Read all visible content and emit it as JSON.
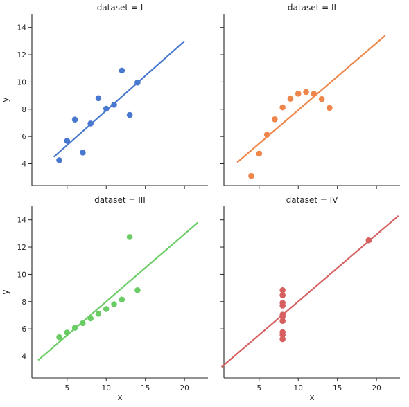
{
  "chart_data": [
    {
      "type": "scatter",
      "title": "dataset = I",
      "xlabel": "",
      "ylabel": "y",
      "color": "#4878d0",
      "x": [
        10,
        8,
        13,
        9,
        11,
        14,
        6,
        4,
        12,
        7,
        5
      ],
      "y": [
        8.04,
        6.95,
        7.58,
        8.81,
        8.33,
        9.96,
        7.24,
        4.26,
        10.84,
        4.82,
        5.68
      ],
      "regression": {
        "x": [
          3.3,
          20.0
        ],
        "y": [
          4.5,
          13.0
        ]
      }
    },
    {
      "type": "scatter",
      "title": "dataset = II",
      "xlabel": "",
      "ylabel": "",
      "color": "#ee854a",
      "x": [
        10,
        8,
        13,
        9,
        11,
        14,
        6,
        4,
        12,
        7,
        5
      ],
      "y": [
        9.14,
        8.14,
        8.74,
        8.77,
        9.26,
        8.1,
        6.13,
        3.1,
        9.13,
        7.26,
        4.74
      ],
      "regression": {
        "x": [
          2.2,
          21.1
        ],
        "y": [
          4.1,
          13.4
        ]
      }
    },
    {
      "type": "scatter",
      "title": "dataset = III",
      "xlabel": "x",
      "ylabel": "y",
      "color": "#6acc64",
      "x": [
        10,
        8,
        13,
        9,
        11,
        14,
        6,
        4,
        12,
        7,
        5
      ],
      "y": [
        7.46,
        6.77,
        12.74,
        7.11,
        7.81,
        8.84,
        6.08,
        5.39,
        8.15,
        6.42,
        5.73
      ],
      "regression": {
        "x": [
          1.3,
          21.7
        ],
        "y": [
          3.7,
          13.8
        ]
      }
    },
    {
      "type": "scatter",
      "title": "dataset = IV",
      "xlabel": "x",
      "ylabel": "",
      "color": "#d65f5f",
      "x": [
        8,
        8,
        8,
        8,
        8,
        8,
        8,
        19,
        8,
        8,
        8
      ],
      "y": [
        6.58,
        5.76,
        7.71,
        8.84,
        8.47,
        7.04,
        5.25,
        12.5,
        5.56,
        7.91,
        6.89
      ],
      "regression": {
        "x": [
          0.2,
          22.8
        ],
        "y": [
          3.2,
          14.3
        ]
      }
    }
  ],
  "axes": {
    "xlim": [
      0.5,
      23
    ],
    "ylim": [
      2.4,
      15
    ],
    "xticks": [
      5,
      10,
      15,
      20
    ],
    "yticks": [
      4,
      6,
      8,
      10,
      12,
      14
    ],
    "grid": false
  }
}
